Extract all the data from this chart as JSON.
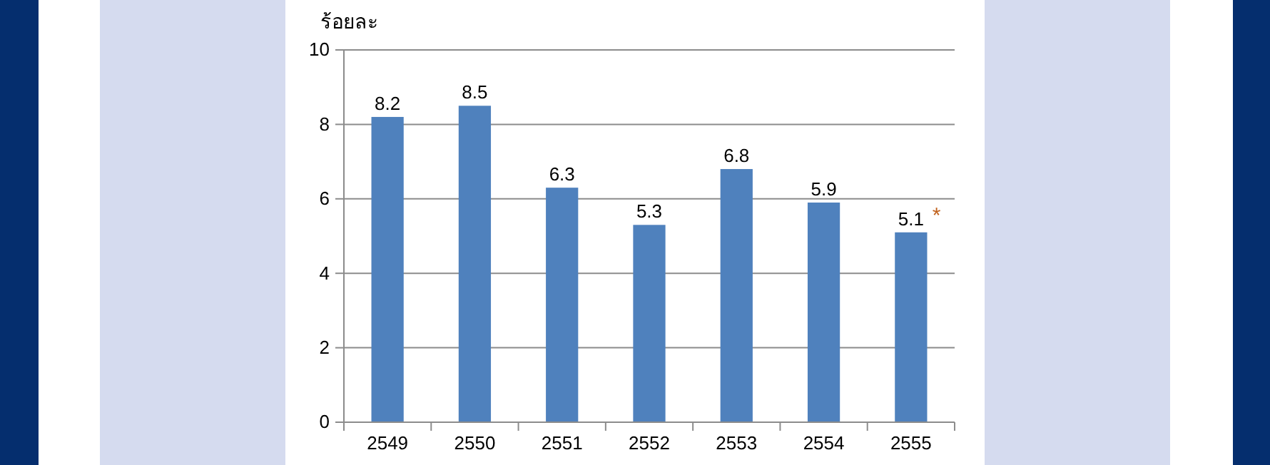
{
  "chart_data": {
    "type": "bar",
    "ylabel": "ร้อยละ",
    "categories": [
      "2549",
      "2550",
      "2551",
      "2552",
      "2553",
      "2554",
      "2555"
    ],
    "values": [
      8.2,
      8.5,
      6.3,
      5.3,
      6.8,
      5.9,
      5.1
    ],
    "color": "#4f81bd",
    "ylim": [
      0,
      10
    ],
    "yticks": [
      0,
      2,
      4,
      6,
      8,
      10
    ],
    "grid": "y",
    "data_labels": true,
    "annotations": [
      {
        "text": "*",
        "x": "2555",
        "y": 5.1
      }
    ]
  }
}
